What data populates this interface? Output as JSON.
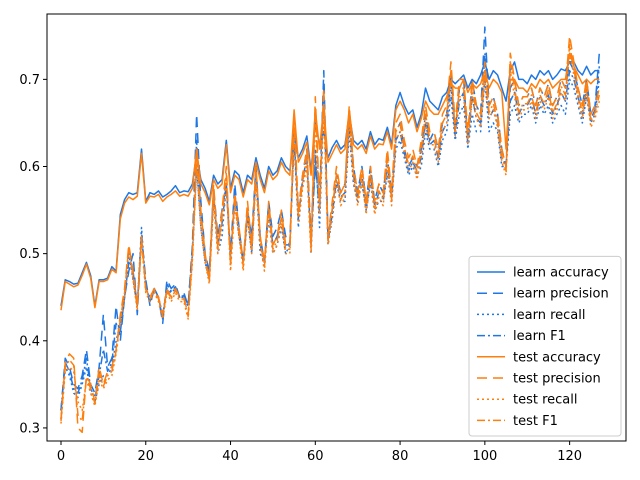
{
  "chart_data": {
    "type": "line",
    "title": "",
    "xlabel": "",
    "ylabel": "",
    "xlim": [
      -3.3,
      133.3
    ],
    "ylim": [
      0.285,
      0.775
    ],
    "xticks": [
      0,
      20,
      40,
      60,
      80,
      100,
      120
    ],
    "yticks": [
      0.3,
      0.4,
      0.5,
      0.6,
      0.7
    ],
    "ytick_labels": [
      "0.3",
      "0.4",
      "0.5",
      "0.6",
      "0.7"
    ],
    "legend_position": "lower-right",
    "series": [
      {
        "name": "learn accuracy",
        "color": "#1f77e4",
        "dash": "solid",
        "y": [
          0.44,
          0.47,
          0.468,
          0.465,
          0.466,
          0.478,
          0.49,
          0.475,
          0.44,
          0.47,
          0.47,
          0.472,
          0.485,
          0.48,
          0.545,
          0.562,
          0.57,
          0.568,
          0.57,
          0.62,
          0.56,
          0.57,
          0.568,
          0.572,
          0.565,
          0.568,
          0.572,
          0.578,
          0.57,
          0.572,
          0.571,
          0.58,
          0.615,
          0.585,
          0.575,
          0.56,
          0.59,
          0.58,
          0.585,
          0.63,
          0.575,
          0.595,
          0.59,
          0.57,
          0.59,
          0.585,
          0.61,
          0.59,
          0.575,
          0.6,
          0.59,
          0.595,
          0.61,
          0.6,
          0.595,
          0.64,
          0.61,
          0.62,
          0.635,
          0.595,
          0.65,
          0.625,
          0.64,
          0.61,
          0.622,
          0.63,
          0.62,
          0.625,
          0.66,
          0.63,
          0.625,
          0.63,
          0.62,
          0.64,
          0.625,
          0.632,
          0.63,
          0.645,
          0.625,
          0.67,
          0.685,
          0.67,
          0.66,
          0.665,
          0.645,
          0.66,
          0.69,
          0.675,
          0.67,
          0.665,
          0.68,
          0.685,
          0.7,
          0.695,
          0.7,
          0.705,
          0.69,
          0.7,
          0.695,
          0.705,
          0.72,
          0.7,
          0.71,
          0.705,
          0.69,
          0.675,
          0.71,
          0.72,
          0.7,
          0.7,
          0.695,
          0.705,
          0.7,
          0.71,
          0.705,
          0.71,
          0.7,
          0.705,
          0.712,
          0.71,
          0.72,
          0.72,
          0.71,
          0.705,
          0.715,
          0.705,
          0.71,
          0.71
        ]
      },
      {
        "name": "learn precision",
        "color": "#1f77e4",
        "dash": "10,6",
        "y": [
          0.32,
          0.38,
          0.37,
          0.35,
          0.345,
          0.36,
          0.39,
          0.35,
          0.34,
          0.37,
          0.43,
          0.37,
          0.38,
          0.44,
          0.4,
          0.45,
          0.48,
          0.5,
          0.43,
          0.52,
          0.47,
          0.44,
          0.46,
          0.45,
          0.42,
          0.47,
          0.46,
          0.465,
          0.45,
          0.455,
          0.44,
          0.51,
          0.66,
          0.56,
          0.5,
          0.48,
          0.575,
          0.52,
          0.55,
          0.58,
          0.5,
          0.58,
          0.53,
          0.49,
          0.55,
          0.52,
          0.6,
          0.52,
          0.49,
          0.56,
          0.52,
          0.53,
          0.55,
          0.52,
          0.51,
          0.64,
          0.55,
          0.59,
          0.62,
          0.52,
          0.6,
          0.56,
          0.71,
          0.52,
          0.55,
          0.59,
          0.57,
          0.58,
          0.66,
          0.6,
          0.57,
          0.6,
          0.56,
          0.6,
          0.56,
          0.58,
          0.57,
          0.61,
          0.57,
          0.64,
          0.65,
          0.62,
          0.6,
          0.61,
          0.6,
          0.62,
          0.66,
          0.63,
          0.64,
          0.62,
          0.65,
          0.66,
          0.71,
          0.64,
          0.69,
          0.7,
          0.63,
          0.7,
          0.67,
          0.66,
          0.76,
          0.67,
          0.68,
          0.66,
          0.62,
          0.6,
          0.69,
          0.7,
          0.67,
          0.68,
          0.68,
          0.69,
          0.67,
          0.69,
          0.68,
          0.695,
          0.67,
          0.68,
          0.7,
          0.69,
          0.72,
          0.71,
          0.69,
          0.67,
          0.7,
          0.66,
          0.67,
          0.73
        ]
      },
      {
        "name": "learn recall",
        "color": "#1f77e4",
        "dash": "2,3",
        "y": [
          0.31,
          0.37,
          0.36,
          0.34,
          0.335,
          0.35,
          0.37,
          0.34,
          0.33,
          0.35,
          0.36,
          0.36,
          0.37,
          0.4,
          0.42,
          0.45,
          0.5,
          0.47,
          0.44,
          0.53,
          0.46,
          0.45,
          0.46,
          0.45,
          0.43,
          0.46,
          0.455,
          0.46,
          0.45,
          0.45,
          0.44,
          0.5,
          0.6,
          0.53,
          0.49,
          0.47,
          0.56,
          0.5,
          0.52,
          0.58,
          0.49,
          0.56,
          0.52,
          0.49,
          0.54,
          0.5,
          0.59,
          0.5,
          0.49,
          0.54,
          0.5,
          0.51,
          0.53,
          0.5,
          0.51,
          0.63,
          0.53,
          0.58,
          0.6,
          0.5,
          0.62,
          0.53,
          0.67,
          0.51,
          0.54,
          0.58,
          0.56,
          0.56,
          0.64,
          0.58,
          0.56,
          0.58,
          0.55,
          0.58,
          0.55,
          0.56,
          0.56,
          0.59,
          0.56,
          0.62,
          0.63,
          0.61,
          0.59,
          0.6,
          0.59,
          0.6,
          0.64,
          0.62,
          0.62,
          0.6,
          0.63,
          0.64,
          0.68,
          0.63,
          0.66,
          0.67,
          0.62,
          0.66,
          0.64,
          0.64,
          0.7,
          0.64,
          0.65,
          0.64,
          0.6,
          0.6,
          0.66,
          0.67,
          0.65,
          0.66,
          0.66,
          0.67,
          0.65,
          0.67,
          0.66,
          0.67,
          0.65,
          0.66,
          0.67,
          0.66,
          0.7,
          0.69,
          0.67,
          0.65,
          0.68,
          0.65,
          0.66,
          0.7
        ]
      },
      {
        "name": "learn F1",
        "color": "#1f77e4",
        "dash": "8,3,2,3",
        "y": [
          0.32,
          0.375,
          0.365,
          0.345,
          0.34,
          0.355,
          0.38,
          0.345,
          0.335,
          0.36,
          0.39,
          0.365,
          0.375,
          0.42,
          0.41,
          0.45,
          0.49,
          0.48,
          0.44,
          0.525,
          0.465,
          0.445,
          0.46,
          0.45,
          0.425,
          0.465,
          0.457,
          0.462,
          0.45,
          0.452,
          0.44,
          0.505,
          0.63,
          0.545,
          0.495,
          0.475,
          0.567,
          0.51,
          0.535,
          0.58,
          0.495,
          0.57,
          0.525,
          0.49,
          0.545,
          0.51,
          0.595,
          0.51,
          0.49,
          0.55,
          0.51,
          0.52,
          0.54,
          0.51,
          0.51,
          0.635,
          0.54,
          0.585,
          0.61,
          0.51,
          0.61,
          0.545,
          0.69,
          0.515,
          0.545,
          0.585,
          0.565,
          0.57,
          0.65,
          0.59,
          0.565,
          0.59,
          0.555,
          0.59,
          0.555,
          0.57,
          0.565,
          0.6,
          0.565,
          0.63,
          0.64,
          0.615,
          0.595,
          0.605,
          0.595,
          0.61,
          0.65,
          0.625,
          0.63,
          0.61,
          0.64,
          0.65,
          0.695,
          0.635,
          0.675,
          0.685,
          0.625,
          0.68,
          0.655,
          0.65,
          0.73,
          0.655,
          0.665,
          0.65,
          0.61,
          0.6,
          0.675,
          0.685,
          0.66,
          0.67,
          0.67,
          0.68,
          0.66,
          0.68,
          0.67,
          0.682,
          0.66,
          0.67,
          0.685,
          0.675,
          0.71,
          0.7,
          0.68,
          0.66,
          0.69,
          0.655,
          0.665,
          0.715
        ]
      },
      {
        "name": "test accuracy",
        "color": "#ff7f0e",
        "dash": "solid",
        "y": [
          0.435,
          0.468,
          0.465,
          0.462,
          0.464,
          0.475,
          0.488,
          0.472,
          0.438,
          0.468,
          0.468,
          0.47,
          0.482,
          0.478,
          0.54,
          0.558,
          0.565,
          0.562,
          0.566,
          0.615,
          0.558,
          0.566,
          0.565,
          0.568,
          0.56,
          0.565,
          0.568,
          0.572,
          0.566,
          0.568,
          0.566,
          0.575,
          0.62,
          0.58,
          0.57,
          0.556,
          0.585,
          0.575,
          0.58,
          0.625,
          0.57,
          0.59,
          0.585,
          0.565,
          0.585,
          0.58,
          0.605,
          0.585,
          0.57,
          0.595,
          0.585,
          0.59,
          0.605,
          0.595,
          0.59,
          0.665,
          0.605,
          0.615,
          0.628,
          0.59,
          0.665,
          0.62,
          0.67,
          0.605,
          0.615,
          0.625,
          0.615,
          0.62,
          0.665,
          0.625,
          0.62,
          0.625,
          0.615,
          0.635,
          0.62,
          0.626,
          0.625,
          0.64,
          0.62,
          0.665,
          0.675,
          0.665,
          0.65,
          0.66,
          0.64,
          0.655,
          0.675,
          0.665,
          0.66,
          0.66,
          0.67,
          0.68,
          0.695,
          0.69,
          0.69,
          0.7,
          0.685,
          0.695,
          0.69,
          0.695,
          0.71,
          0.69,
          0.7,
          0.695,
          0.685,
          0.62,
          0.7,
          0.7,
          0.69,
          0.69,
          0.685,
          0.695,
          0.69,
          0.7,
          0.695,
          0.7,
          0.69,
          0.695,
          0.7,
          0.7,
          0.73,
          0.715,
          0.705,
          0.695,
          0.7,
          0.695,
          0.7,
          0.7
        ]
      },
      {
        "name": "test precision",
        "color": "#ff7f0e",
        "dash": "10,6",
        "y": [
          0.31,
          0.375,
          0.385,
          0.38,
          0.3,
          0.295,
          0.36,
          0.35,
          0.33,
          0.37,
          0.35,
          0.365,
          0.37,
          0.39,
          0.43,
          0.46,
          0.51,
          0.48,
          0.44,
          0.52,
          0.46,
          0.45,
          0.46,
          0.45,
          0.43,
          0.46,
          0.45,
          0.46,
          0.45,
          0.45,
          0.43,
          0.5,
          0.62,
          0.55,
          0.5,
          0.47,
          0.58,
          0.51,
          0.55,
          0.6,
          0.49,
          0.57,
          0.53,
          0.49,
          0.56,
          0.51,
          0.6,
          0.52,
          0.49,
          0.56,
          0.51,
          0.52,
          0.55,
          0.51,
          0.51,
          0.66,
          0.55,
          0.59,
          0.62,
          0.51,
          0.68,
          0.56,
          0.69,
          0.52,
          0.56,
          0.6,
          0.57,
          0.58,
          0.67,
          0.6,
          0.57,
          0.6,
          0.56,
          0.6,
          0.56,
          0.58,
          0.57,
          0.62,
          0.57,
          0.65,
          0.66,
          0.63,
          0.61,
          0.62,
          0.6,
          0.63,
          0.67,
          0.64,
          0.64,
          0.62,
          0.66,
          0.67,
          0.72,
          0.65,
          0.7,
          0.7,
          0.64,
          0.7,
          0.67,
          0.66,
          0.72,
          0.67,
          0.68,
          0.66,
          0.62,
          0.6,
          0.73,
          0.7,
          0.67,
          0.68,
          0.68,
          0.69,
          0.67,
          0.69,
          0.68,
          0.695,
          0.67,
          0.68,
          0.7,
          0.69,
          0.75,
          0.72,
          0.69,
          0.67,
          0.7,
          0.66,
          0.67,
          0.69
        ]
      },
      {
        "name": "test recall",
        "color": "#ff7f0e",
        "dash": "2,3",
        "y": [
          0.305,
          0.365,
          0.37,
          0.365,
          0.33,
          0.32,
          0.355,
          0.34,
          0.325,
          0.355,
          0.345,
          0.355,
          0.36,
          0.385,
          0.42,
          0.45,
          0.505,
          0.47,
          0.435,
          0.515,
          0.455,
          0.445,
          0.455,
          0.445,
          0.425,
          0.455,
          0.445,
          0.455,
          0.445,
          0.445,
          0.425,
          0.49,
          0.6,
          0.53,
          0.49,
          0.465,
          0.565,
          0.5,
          0.535,
          0.585,
          0.48,
          0.555,
          0.52,
          0.48,
          0.545,
          0.5,
          0.585,
          0.51,
          0.48,
          0.545,
          0.5,
          0.51,
          0.535,
          0.5,
          0.5,
          0.64,
          0.535,
          0.575,
          0.6,
          0.5,
          0.655,
          0.545,
          0.67,
          0.51,
          0.545,
          0.585,
          0.555,
          0.565,
          0.65,
          0.585,
          0.555,
          0.585,
          0.545,
          0.585,
          0.545,
          0.565,
          0.555,
          0.6,
          0.555,
          0.63,
          0.64,
          0.615,
          0.595,
          0.605,
          0.585,
          0.61,
          0.65,
          0.625,
          0.625,
          0.605,
          0.64,
          0.65,
          0.7,
          0.635,
          0.68,
          0.68,
          0.625,
          0.68,
          0.655,
          0.645,
          0.7,
          0.655,
          0.665,
          0.645,
          0.605,
          0.59,
          0.71,
          0.68,
          0.655,
          0.665,
          0.665,
          0.675,
          0.655,
          0.675,
          0.665,
          0.68,
          0.655,
          0.665,
          0.685,
          0.675,
          0.73,
          0.705,
          0.675,
          0.655,
          0.685,
          0.645,
          0.655,
          0.675
        ]
      },
      {
        "name": "test F1",
        "color": "#ff7f0e",
        "dash": "8,3,2,3",
        "y": [
          0.308,
          0.37,
          0.378,
          0.372,
          0.315,
          0.308,
          0.358,
          0.345,
          0.328,
          0.362,
          0.348,
          0.36,
          0.365,
          0.388,
          0.425,
          0.455,
          0.508,
          0.475,
          0.438,
          0.518,
          0.458,
          0.448,
          0.458,
          0.448,
          0.428,
          0.458,
          0.448,
          0.458,
          0.448,
          0.448,
          0.428,
          0.495,
          0.61,
          0.54,
          0.495,
          0.468,
          0.572,
          0.505,
          0.542,
          0.592,
          0.485,
          0.562,
          0.525,
          0.485,
          0.552,
          0.505,
          0.592,
          0.515,
          0.485,
          0.552,
          0.505,
          0.515,
          0.542,
          0.505,
          0.505,
          0.65,
          0.542,
          0.582,
          0.61,
          0.505,
          0.668,
          0.552,
          0.68,
          0.515,
          0.552,
          0.592,
          0.562,
          0.572,
          0.66,
          0.592,
          0.562,
          0.592,
          0.552,
          0.592,
          0.552,
          0.572,
          0.562,
          0.61,
          0.562,
          0.64,
          0.65,
          0.622,
          0.602,
          0.612,
          0.592,
          0.62,
          0.66,
          0.632,
          0.632,
          0.612,
          0.65,
          0.66,
          0.71,
          0.642,
          0.69,
          0.69,
          0.632,
          0.69,
          0.662,
          0.652,
          0.71,
          0.662,
          0.672,
          0.652,
          0.612,
          0.595,
          0.72,
          0.69,
          0.662,
          0.672,
          0.672,
          0.682,
          0.662,
          0.682,
          0.672,
          0.688,
          0.662,
          0.672,
          0.692,
          0.682,
          0.74,
          0.712,
          0.682,
          0.662,
          0.692,
          0.652,
          0.662,
          0.682
        ]
      }
    ]
  }
}
